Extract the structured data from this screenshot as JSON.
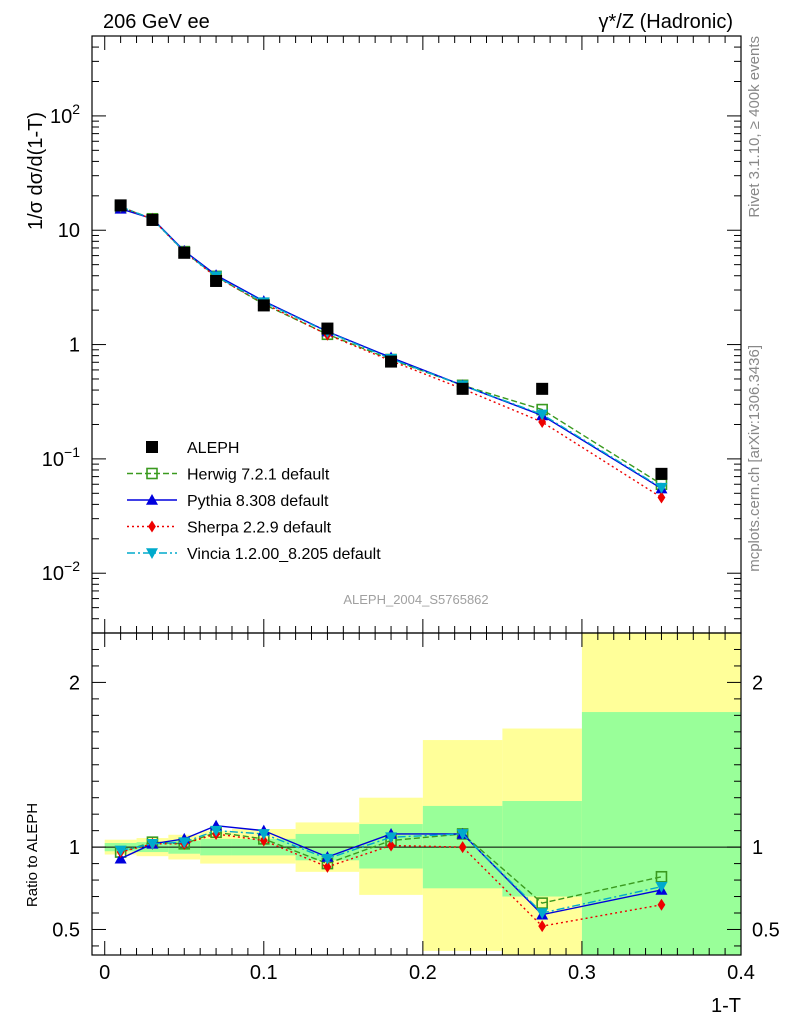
{
  "header": {
    "left_label": "206 GeV ee",
    "right_label": "γ*/Z (Hadronic)"
  },
  "side_labels": {
    "rivet": "Rivet 3.1.10, ≥ 400k events",
    "mcplots": "mcplots.cern.ch [arXiv:1306.3436]"
  },
  "analysis_tag": "ALEPH_2004_S5765862",
  "chart_data": [
    {
      "type": "line",
      "role": "main",
      "ylabel": "1/σ  dσ/d(1-T)",
      "yscale": "log",
      "ylim": [
        0.003,
        500
      ],
      "xlim": [
        -0.008,
        0.4
      ],
      "y_ticks": [
        {
          "value": 0.01,
          "base": "10",
          "exp": "−2"
        },
        {
          "value": 0.1,
          "base": "10",
          "exp": "−1"
        },
        {
          "value": 1,
          "base": "1",
          "exp": ""
        },
        {
          "value": 10,
          "base": "10",
          "exp": ""
        },
        {
          "value": 100,
          "base": "10",
          "exp": "2"
        }
      ],
      "legend_position": "bottom-left",
      "series": [
        {
          "name": "ALEPH",
          "style": "data",
          "color": "#000000",
          "marker": "square-filled",
          "x": [
            0.01,
            0.03,
            0.05,
            0.07,
            0.1,
            0.14,
            0.18,
            0.225,
            0.275,
            0.35
          ],
          "y": [
            16.5,
            12.3,
            6.35,
            3.6,
            2.2,
            1.38,
            0.71,
            0.41,
            0.41,
            0.074
          ]
        },
        {
          "name": "Herwig 7.2.1 default",
          "style": "dashed",
          "color": "#3a9a1f",
          "marker": "square-open",
          "x": [
            0.01,
            0.03,
            0.05,
            0.07,
            0.1,
            0.14,
            0.18,
            0.225,
            0.275,
            0.35
          ],
          "y": [
            16.0,
            12.6,
            6.5,
            3.95,
            2.25,
            1.23,
            0.74,
            0.44,
            0.27,
            0.06
          ]
        },
        {
          "name": "Pythia 8.308 default",
          "style": "solid",
          "color": "#0000dd",
          "marker": "triangle-up",
          "x": [
            0.01,
            0.03,
            0.05,
            0.07,
            0.1,
            0.14,
            0.18,
            0.225,
            0.275,
            0.35
          ],
          "y": [
            15.4,
            12.6,
            6.6,
            4.05,
            2.4,
            1.3,
            0.77,
            0.44,
            0.24,
            0.055
          ]
        },
        {
          "name": "Sherpa 2.2.9 default",
          "style": "dotted",
          "color": "#ee0000",
          "marker": "diamond",
          "x": [
            0.01,
            0.03,
            0.05,
            0.07,
            0.1,
            0.14,
            0.18,
            0.225,
            0.275,
            0.35
          ],
          "y": [
            16.0,
            12.5,
            6.45,
            3.9,
            2.3,
            1.22,
            0.72,
            0.41,
            0.21,
            0.046
          ]
        },
        {
          "name": "Vincia 1.2.00_8.205 default",
          "style": "dashdot",
          "color": "#00aacc",
          "marker": "triangle-down",
          "x": [
            0.01,
            0.03,
            0.05,
            0.07,
            0.1,
            0.14,
            0.18,
            0.225,
            0.275,
            0.35
          ],
          "y": [
            16.1,
            12.5,
            6.5,
            3.95,
            2.35,
            1.29,
            0.75,
            0.44,
            0.245,
            0.056
          ]
        }
      ]
    },
    {
      "type": "line",
      "role": "ratio",
      "ylabel": "Ratio to ALEPH",
      "xlabel": "1-T",
      "ylim": [
        0.345,
        2.3
      ],
      "xlim": [
        -0.008,
        0.4
      ],
      "y_ticks": [
        0.5,
        1,
        2
      ],
      "x_ticks": [
        {
          "value": 0,
          "label": "0"
        },
        {
          "value": 0.1,
          "label": "0.1"
        },
        {
          "value": 0.2,
          "label": "0.2"
        },
        {
          "value": 0.3,
          "label": "0.3"
        },
        {
          "value": 0.4,
          "label": "0.4"
        }
      ],
      "uncertainty_bands": [
        {
          "x0": 0.0,
          "x1": 0.02,
          "stat": [
            0.975,
            1.025
          ],
          "total": [
            0.955,
            1.045
          ]
        },
        {
          "x0": 0.02,
          "x1": 0.04,
          "stat": [
            0.97,
            1.03
          ],
          "total": [
            0.945,
            1.055
          ]
        },
        {
          "x0": 0.04,
          "x1": 0.06,
          "stat": [
            0.96,
            1.04
          ],
          "total": [
            0.925,
            1.075
          ]
        },
        {
          "x0": 0.06,
          "x1": 0.08,
          "stat": [
            0.95,
            1.05
          ],
          "total": [
            0.9,
            1.1
          ]
        },
        {
          "x0": 0.08,
          "x1": 0.12,
          "stat": [
            0.95,
            1.05
          ],
          "total": [
            0.9,
            1.11
          ]
        },
        {
          "x0": 0.12,
          "x1": 0.16,
          "stat": [
            0.92,
            1.08
          ],
          "total": [
            0.85,
            1.15
          ]
        },
        {
          "x0": 0.16,
          "x1": 0.2,
          "stat": [
            0.87,
            1.14
          ],
          "total": [
            0.71,
            1.3
          ]
        },
        {
          "x0": 0.2,
          "x1": 0.25,
          "stat": [
            0.75,
            1.25
          ],
          "total": [
            0.37,
            1.65
          ]
        },
        {
          "x0": 0.25,
          "x1": 0.3,
          "stat": [
            0.7,
            1.28
          ],
          "total": [
            0.345,
            1.72
          ]
        },
        {
          "x0": 0.3,
          "x1": 0.4,
          "stat": [
            0.345,
            1.82
          ],
          "total": [
            0.345,
            2.3
          ]
        }
      ],
      "series": [
        {
          "name": "Herwig 7.2.1 default",
          "x": [
            0.01,
            0.03,
            0.05,
            0.07,
            0.1,
            0.14,
            0.18,
            0.225,
            0.275,
            0.35
          ],
          "y": [
            0.97,
            1.03,
            1.02,
            1.09,
            1.05,
            0.9,
            1.04,
            1.08,
            0.66,
            0.82
          ]
        },
        {
          "name": "Pythia 8.308 default",
          "x": [
            0.01,
            0.03,
            0.05,
            0.07,
            0.1,
            0.14,
            0.18,
            0.225,
            0.275,
            0.35
          ],
          "y": [
            0.93,
            1.02,
            1.05,
            1.13,
            1.1,
            0.94,
            1.08,
            1.08,
            0.59,
            0.74
          ]
        },
        {
          "name": "Sherpa 2.2.9 default",
          "x": [
            0.01,
            0.03,
            0.05,
            0.07,
            0.1,
            0.14,
            0.18,
            0.225,
            0.275,
            0.35
          ],
          "y": [
            0.97,
            1.02,
            1.02,
            1.08,
            1.04,
            0.88,
            1.01,
            1.0,
            0.52,
            0.65
          ]
        },
        {
          "name": "Vincia 1.2.00_8.205 default",
          "x": [
            0.01,
            0.03,
            0.05,
            0.07,
            0.1,
            0.14,
            0.18,
            0.225,
            0.275,
            0.35
          ],
          "y": [
            0.98,
            1.02,
            1.03,
            1.1,
            1.08,
            0.93,
            1.06,
            1.08,
            0.6,
            0.76
          ]
        }
      ]
    }
  ]
}
